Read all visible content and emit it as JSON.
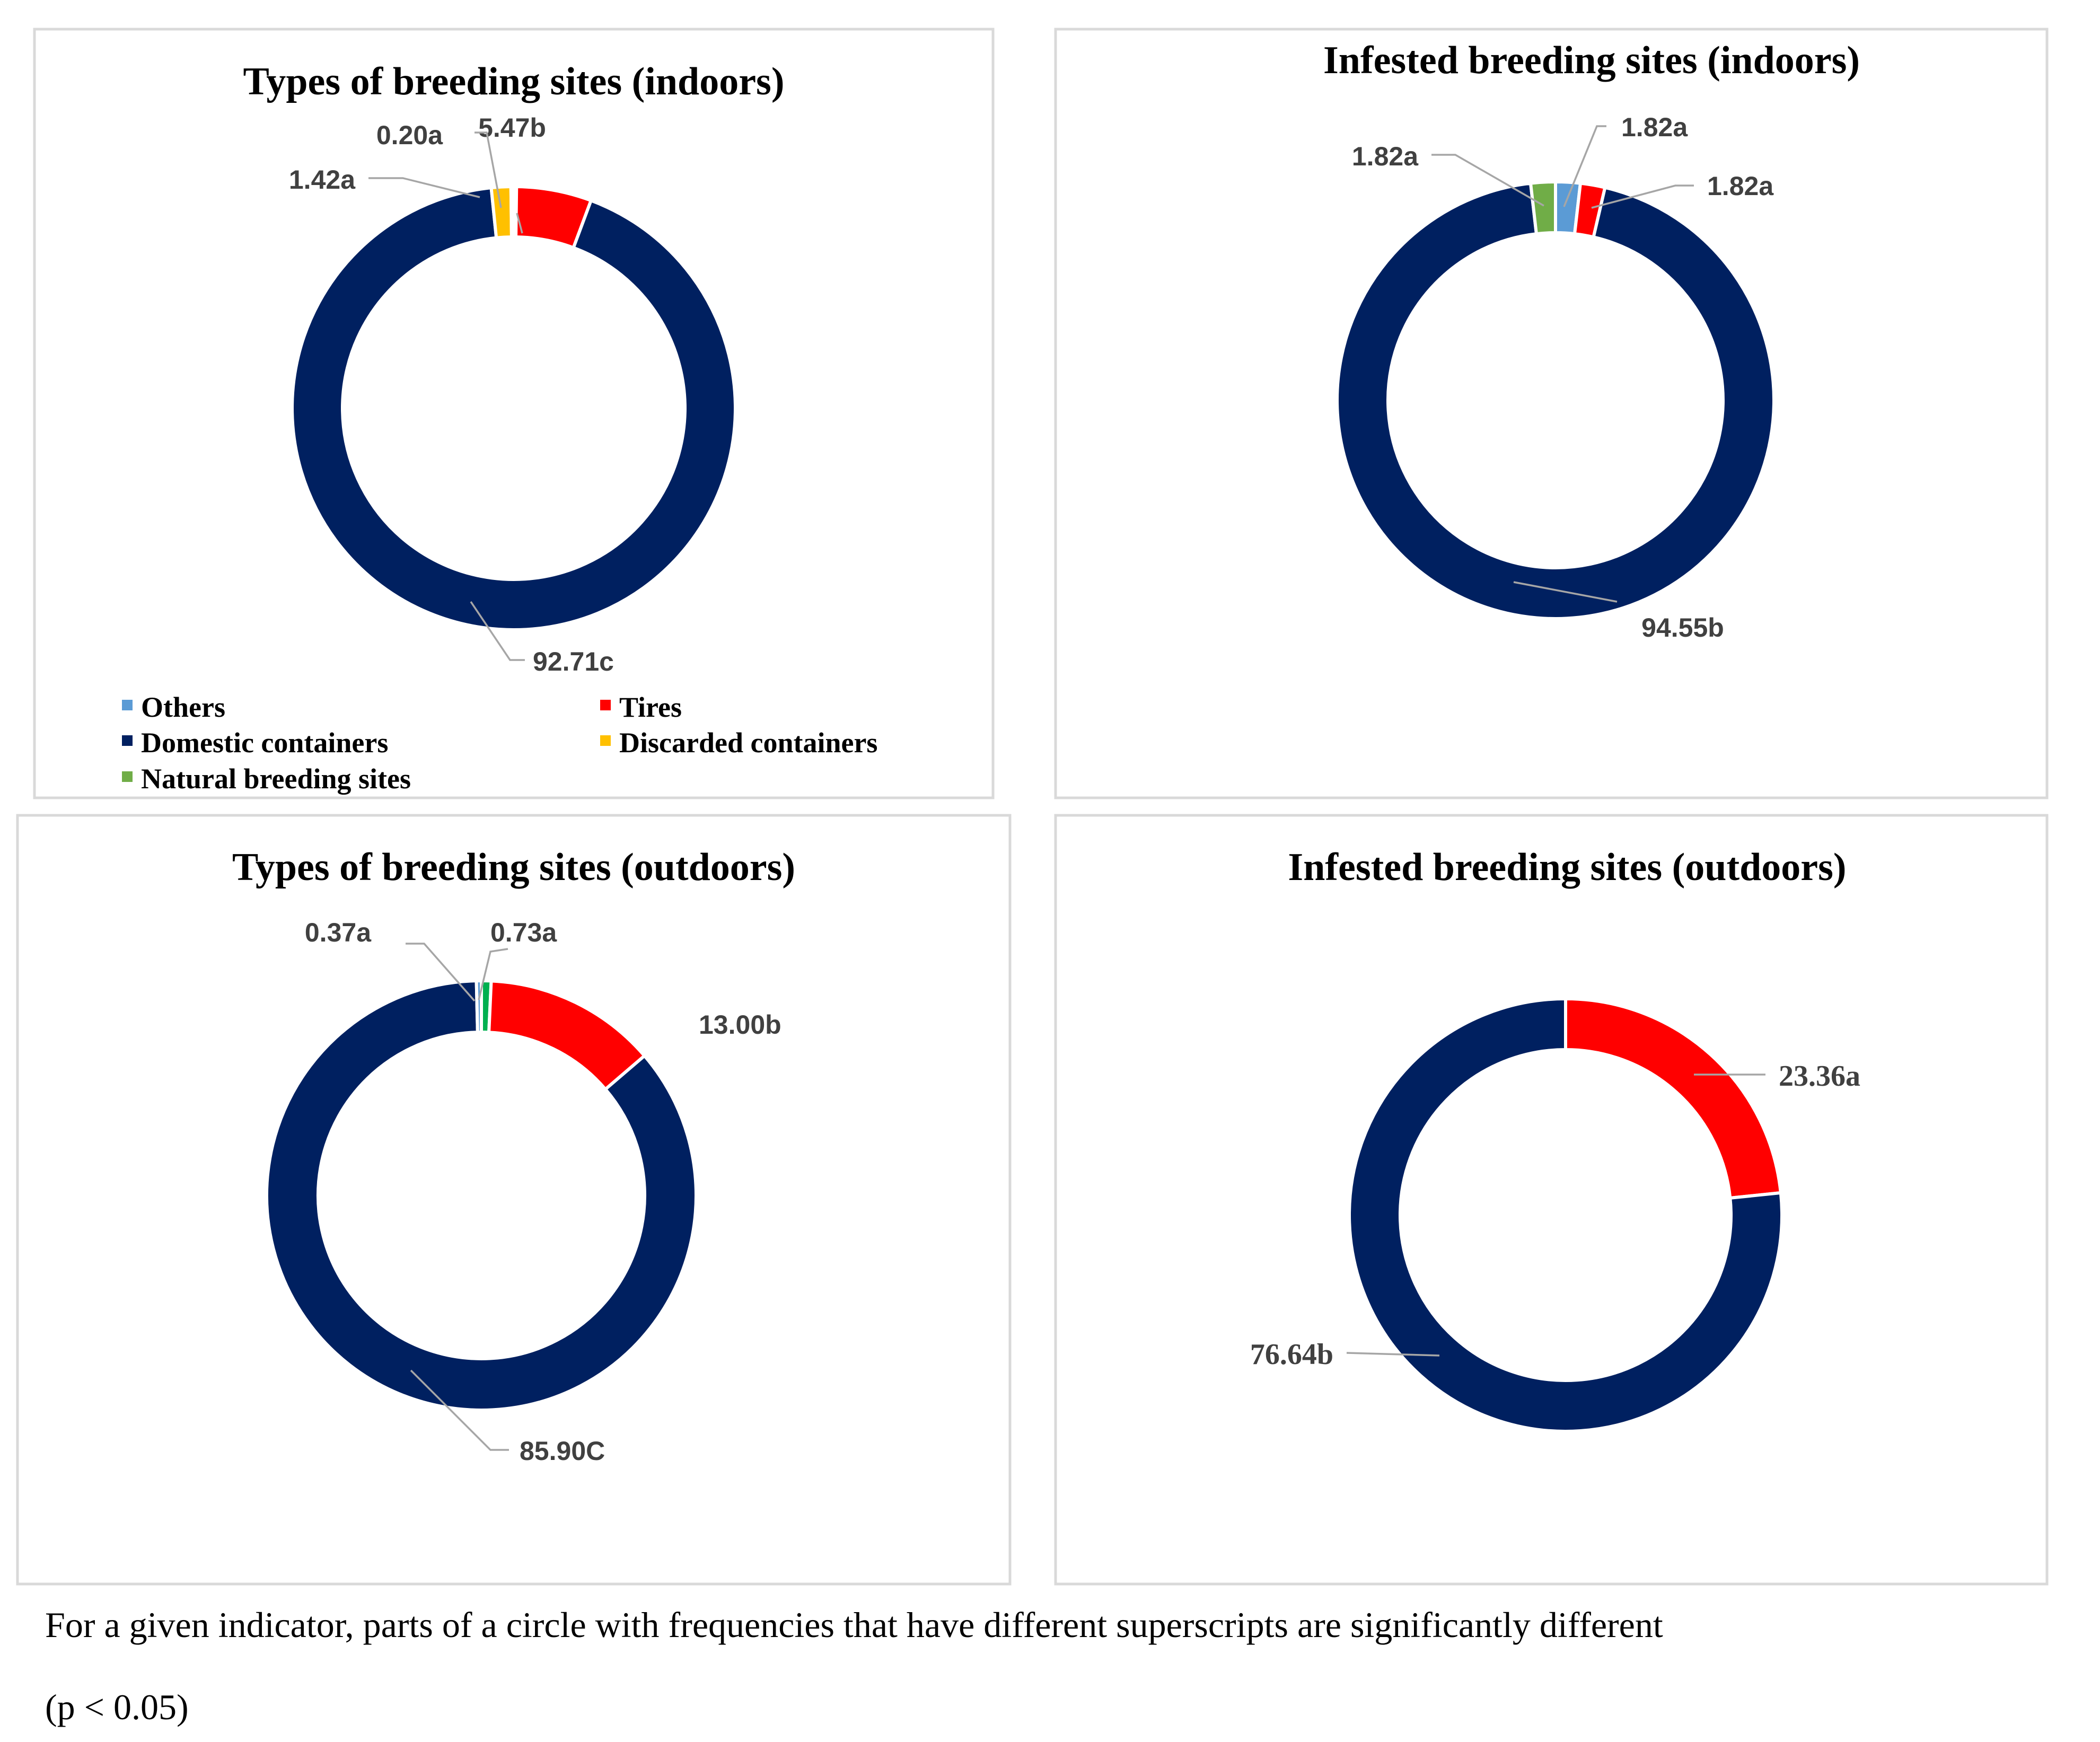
{
  "chart_data": [
    {
      "type": "donut",
      "title": "Types of breeding sites (indoors)",
      "slices": [
        {
          "category": "Others",
          "value": 0.2,
          "label": "0.20a",
          "color": "#5b9bd5"
        },
        {
          "category": "Tires",
          "value": 5.47,
          "label": "5.47b",
          "color": "#ff0000"
        },
        {
          "category": "Domestic containers",
          "value": 92.71,
          "label": "92.71c",
          "color": "#002060"
        },
        {
          "category": "Discarded containers",
          "value": 1.42,
          "label": "1.42a",
          "color": "#ffc000"
        },
        {
          "category": "Natural breeding sites",
          "value": 0.2,
          "label": "",
          "color": "#70ad47"
        }
      ],
      "legend": {
        "placement": "bottom",
        "entries": [
          {
            "label": "Others",
            "color": "#5b9bd5"
          },
          {
            "label": "Tires",
            "color": "#ff0000"
          },
          {
            "label": "Domestic containers",
            "color": "#002060"
          },
          {
            "label": "Discarded containers",
            "color": "#ffc000"
          },
          {
            "label": "Natural breeding sites",
            "color": "#70ad47"
          }
        ]
      }
    },
    {
      "type": "donut",
      "title": "Infested breeding sites (indoors)",
      "slices": [
        {
          "category": "Others",
          "value": 1.82,
          "label": "1.82a",
          "color": "#5b9bd5"
        },
        {
          "category": "Tires",
          "value": 1.82,
          "label": "1.82a",
          "color": "#ff0000"
        },
        {
          "category": "Domestic containers",
          "value": 94.55,
          "label": "94.55b",
          "color": "#002060"
        },
        {
          "category": "Natural breeding sites",
          "value": 1.82,
          "label": "1.82a",
          "color": "#70ad47"
        }
      ]
    },
    {
      "type": "donut",
      "title": "Types of breeding sites (outdoors)",
      "slices": [
        {
          "category": "Others",
          "value": 0.37,
          "label": "0.37a",
          "color": "#5b9bd5"
        },
        {
          "category": "Tires",
          "value": 13.0,
          "label": "13.00b",
          "color": "#ff0000"
        },
        {
          "category": "Domestic containers",
          "value": 85.9,
          "label": "85.90C",
          "color": "#002060"
        },
        {
          "category": "Natural breeding sites",
          "value": 0.73,
          "label": "0.73a",
          "color": "#00b050"
        }
      ]
    },
    {
      "type": "donut",
      "title": "Infested breeding sites (outdoors)",
      "slices": [
        {
          "category": "Tires",
          "value": 23.36,
          "label": "23.36a",
          "color": "#ff0000"
        },
        {
          "category": "Domestic containers",
          "value": 76.64,
          "label": "76.64b",
          "color": "#002060"
        }
      ]
    }
  ],
  "footnote": {
    "line1": "For a given indicator, parts of a circle with frequencies that have different superscripts are significantly different",
    "line2": "(p < 0.05)"
  }
}
